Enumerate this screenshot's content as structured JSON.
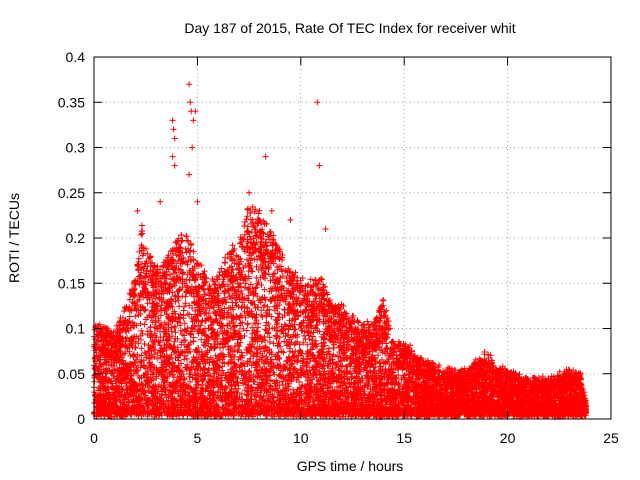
{
  "chart_data": {
    "type": "scatter",
    "title": "Day 187 of 2015, Rate Of TEC Index for receiver whit",
    "xlabel": "GPS time / hours",
    "ylabel": "ROTI / TECUs",
    "xlim": [
      0,
      25
    ],
    "ylim": [
      0,
      0.4
    ],
    "xticks": [
      0,
      5,
      10,
      15,
      20,
      25
    ],
    "xtick_labels": [
      "0",
      "5",
      "10",
      "15",
      "20",
      "25"
    ],
    "yticks": [
      0,
      0.05,
      0.1,
      0.15,
      0.2,
      0.25,
      0.3,
      0.35,
      0.4
    ],
    "ytick_labels": [
      "0",
      "0.05",
      "0.1",
      "0.15",
      "0.2",
      "0.25",
      "0.3",
      "0.35",
      "0.4"
    ],
    "grid": true,
    "marker": "+",
    "series_color": "#ff0000",
    "envelope_hours": [
      0,
      0.5,
      1,
      1.5,
      2,
      2.3,
      2.6,
      3,
      3.5,
      4,
      4.5,
      5,
      5.5,
      6,
      6.5,
      7,
      7.5,
      8,
      8.5,
      9,
      9.5,
      10,
      10.5,
      11,
      11.5,
      12,
      12.5,
      13,
      13.5,
      14,
      14.5,
      15,
      15.5,
      16,
      17,
      18,
      19,
      19.5,
      20,
      21,
      22,
      23,
      23.5,
      23.8
    ],
    "envelope_roti": [
      0.1,
      0.1,
      0.09,
      0.12,
      0.15,
      0.21,
      0.18,
      0.16,
      0.17,
      0.19,
      0.2,
      0.17,
      0.15,
      0.15,
      0.18,
      0.19,
      0.23,
      0.22,
      0.2,
      0.18,
      0.16,
      0.15,
      0.15,
      0.15,
      0.12,
      0.12,
      0.11,
      0.1,
      0.1,
      0.13,
      0.08,
      0.08,
      0.07,
      0.06,
      0.05,
      0.05,
      0.07,
      0.05,
      0.05,
      0.04,
      0.04,
      0.05,
      0.05,
      0.01
    ],
    "spikes": [
      {
        "x": 4.6,
        "y": 0.37
      },
      {
        "x": 4.65,
        "y": 0.35
      },
      {
        "x": 4.7,
        "y": 0.34
      },
      {
        "x": 4.8,
        "y": 0.33
      },
      {
        "x": 4.9,
        "y": 0.34
      },
      {
        "x": 4.75,
        "y": 0.3
      },
      {
        "x": 4.6,
        "y": 0.27
      },
      {
        "x": 3.8,
        "y": 0.33
      },
      {
        "x": 3.85,
        "y": 0.32
      },
      {
        "x": 3.9,
        "y": 0.31
      },
      {
        "x": 3.8,
        "y": 0.29
      },
      {
        "x": 3.9,
        "y": 0.28
      },
      {
        "x": 10.8,
        "y": 0.35
      },
      {
        "x": 10.9,
        "y": 0.28
      },
      {
        "x": 8.3,
        "y": 0.29
      },
      {
        "x": 5,
        "y": 0.24
      },
      {
        "x": 3.2,
        "y": 0.24
      },
      {
        "x": 2.1,
        "y": 0.23
      },
      {
        "x": 7.5,
        "y": 0.25
      },
      {
        "x": 9.5,
        "y": 0.22
      },
      {
        "x": 11.2,
        "y": 0.21
      },
      {
        "x": 8.6,
        "y": 0.23
      }
    ]
  }
}
